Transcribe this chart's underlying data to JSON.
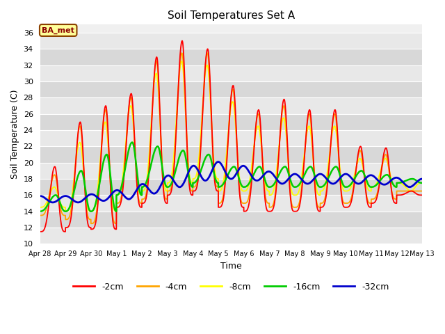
{
  "title": "Soil Temperatures Set A",
  "xlabel": "Time",
  "ylabel": "Soil Temperature (C)",
  "ylim": [
    10,
    37
  ],
  "yticks": [
    10,
    12,
    14,
    16,
    18,
    20,
    22,
    24,
    26,
    28,
    30,
    32,
    34,
    36
  ],
  "plot_bg": "#f0f0f0",
  "fig_bg": "#ffffff",
  "annotation_text": "BA_met",
  "annotation_bg": "#ffff99",
  "annotation_border": "#8B4000",
  "annotation_text_color": "#8B0000",
  "colors": {
    "2cm": "#ff0000",
    "4cm": "#ffa500",
    "8cm": "#ffff00",
    "16cm": "#00cc00",
    "32cm": "#0000cc"
  },
  "x_tick_labels": [
    "Apr 28",
    "Apr 29",
    "Apr 30",
    "May 1",
    "May 2",
    "May 3",
    "May 4",
    "May 5",
    "May 6",
    "May 7",
    "May 8",
    "May 9",
    "May 10",
    "May 11",
    "May 12",
    "May 13"
  ],
  "band_colors": [
    "#e8e8e8",
    "#d8d8d8"
  ],
  "grid_color": "#ffffff",
  "day_peak_2cm": [
    19.5,
    25.0,
    27.0,
    28.5,
    33.0,
    35.0,
    34.0,
    29.5,
    26.5,
    27.8,
    26.5,
    26.5,
    22.0,
    21.8,
    16.5
  ],
  "day_min_2cm": [
    11.5,
    12.0,
    11.8,
    14.5,
    15.0,
    16.0,
    16.5,
    14.5,
    14.0,
    14.0,
    14.0,
    14.5,
    14.5,
    15.0,
    16.0
  ],
  "day_peak_4cm": [
    18.5,
    24.5,
    26.5,
    28.0,
    32.5,
    33.5,
    33.5,
    29.0,
    26.0,
    27.0,
    26.0,
    26.0,
    21.5,
    21.0,
    16.5
  ],
  "day_min_4cm": [
    13.5,
    13.0,
    12.5,
    15.0,
    15.5,
    16.5,
    17.0,
    15.0,
    15.0,
    14.5,
    14.5,
    15.0,
    15.0,
    15.5,
    16.5
  ],
  "day_peak_8cm": [
    17.0,
    22.5,
    25.0,
    27.0,
    31.0,
    32.5,
    32.0,
    27.5,
    24.5,
    25.5,
    24.5,
    24.5,
    20.5,
    20.5,
    16.5
  ],
  "day_min_8cm": [
    14.5,
    14.0,
    14.0,
    16.0,
    16.5,
    17.5,
    18.0,
    16.5,
    16.5,
    16.0,
    16.0,
    16.5,
    16.5,
    17.0,
    17.5
  ],
  "day_peak_16cm": [
    16.0,
    19.0,
    21.0,
    22.5,
    22.0,
    21.5,
    21.0,
    19.5,
    19.5,
    19.5,
    19.5,
    19.5,
    19.0,
    18.5,
    18.0
  ],
  "day_min_16cm": [
    14.0,
    14.0,
    14.0,
    16.0,
    17.0,
    17.0,
    17.5,
    17.0,
    17.0,
    17.0,
    17.0,
    17.0,
    17.0,
    17.0,
    17.5
  ],
  "day_mean_32cm": [
    15.5,
    15.5,
    15.8,
    16.2,
    17.0,
    18.0,
    19.0,
    19.0,
    18.5,
    18.0,
    18.0,
    18.0,
    18.0,
    17.8,
    17.5
  ],
  "day_amp_32cm": [
    0.4,
    0.4,
    0.5,
    0.7,
    0.8,
    1.0,
    1.2,
    1.0,
    0.7,
    0.6,
    0.6,
    0.6,
    0.6,
    0.5,
    0.5
  ]
}
